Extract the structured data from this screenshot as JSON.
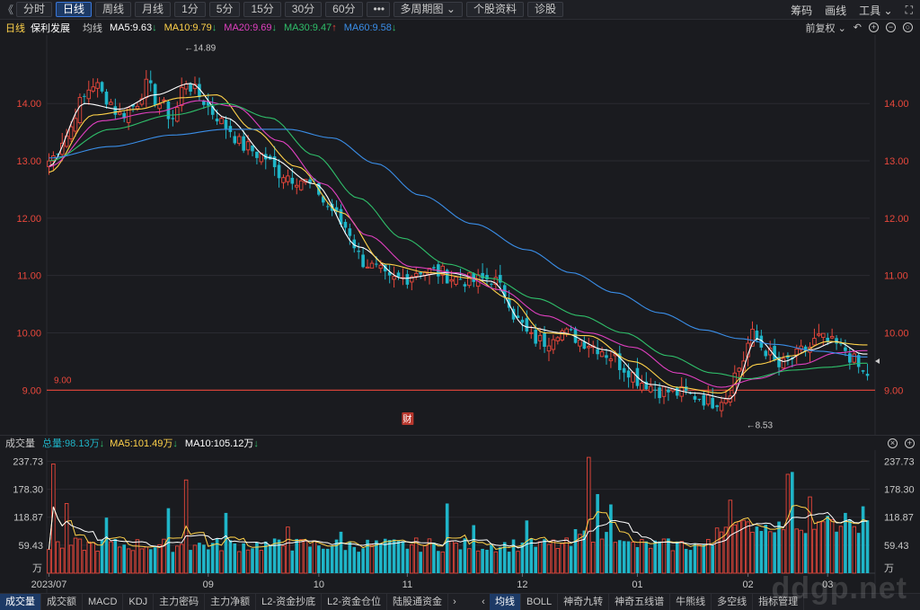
{
  "toolbar": {
    "collapse": "《",
    "tabs": [
      {
        "label": "分时",
        "active": false
      },
      {
        "label": "日线",
        "active": true
      },
      {
        "label": "周线",
        "active": false
      },
      {
        "label": "月线",
        "active": false
      },
      {
        "label": "1分",
        "active": false
      },
      {
        "label": "5分",
        "active": false
      },
      {
        "label": "15分",
        "active": false
      },
      {
        "label": "30分",
        "active": false
      },
      {
        "label": "60分",
        "active": false
      }
    ],
    "more": "•••",
    "multi_period": "多周期图",
    "stock_info": "个股资料",
    "diagnose": "诊股",
    "right_items": [
      "筹码",
      "画线",
      "工具"
    ],
    "fullscreen": "⛶"
  },
  "info_bar": {
    "period": "日线",
    "stock_name": "保利发展",
    "avg_label": "均线",
    "ma": [
      {
        "label": "MA5:9.63",
        "arrow": "down",
        "color": "#ffffff"
      },
      {
        "label": "MA10:9.79",
        "arrow": "down",
        "color": "#ffd24a"
      },
      {
        "label": "MA20:9.69",
        "arrow": "down",
        "color": "#e040c0"
      },
      {
        "label": "MA30:9.47",
        "arrow": "up",
        "color": "#2fbf6a"
      },
      {
        "label": "MA60:9.58",
        "arrow": "down",
        "color": "#3a8ee8"
      }
    ],
    "adjust": "前复权"
  },
  "vol_info": {
    "title": "成交量",
    "total": "总量:98.13万",
    "ma5": "MA5:101.49万",
    "ma10": "MA10:105.12万",
    "ma5_arrow": "down",
    "ma10_arrow": "down"
  },
  "bottom_tabs": {
    "left": [
      {
        "label": "成交量",
        "active": true
      },
      {
        "label": "成交额",
        "active": false
      },
      {
        "label": "MACD",
        "active": false
      },
      {
        "label": "KDJ",
        "active": false
      },
      {
        "label": "主力密码",
        "active": false
      },
      {
        "label": "主力净额",
        "active": false
      },
      {
        "label": "L2-资金抄底",
        "active": false
      },
      {
        "label": "L2-资金仓位",
        "active": false
      },
      {
        "label": "陆股通资金",
        "active": false
      }
    ],
    "right": [
      {
        "label": "均线",
        "active": true
      },
      {
        "label": "BOLL",
        "active": false
      },
      {
        "label": "神奇九转",
        "active": false
      },
      {
        "label": "神奇五线谱",
        "active": false
      },
      {
        "label": "牛熊线",
        "active": false
      },
      {
        "label": "多空线",
        "active": false
      },
      {
        "label": "指标管理",
        "active": false
      }
    ]
  },
  "watermark": "ddgp.net",
  "colors": {
    "up": "#e8473b",
    "down": "#1fb5c8",
    "ma5": "#ffffff",
    "ma10": "#ffd24a",
    "ma20": "#e040c0",
    "ma30": "#2fbf6a",
    "ma60": "#3a8ee8",
    "ref_line": "#e8473b"
  },
  "chart_data": {
    "type": "candlestick",
    "price_axis": {
      "min": 8.3,
      "max": 15.1,
      "ticks": [
        14.0,
        13.0,
        12.0,
        11.0,
        10.0,
        9.0
      ],
      "tick_labels": [
        "14.00",
        "13.00",
        "12.00",
        "11.00",
        "10.00",
        "9.00"
      ]
    },
    "reference_line": {
      "value": 9.0,
      "label": "9.00"
    },
    "annotations": [
      {
        "label": "←14.89",
        "value": 14.89,
        "bar_index": 31
      },
      {
        "label": "←8.53",
        "value": 8.53,
        "bar_index": 158
      },
      {
        "label": "财",
        "bar_index": 81
      }
    ],
    "date_labels": [
      {
        "label": "2023/07",
        "bar_index": 0
      },
      {
        "label": "09",
        "bar_index": 36
      },
      {
        "label": "10",
        "bar_index": 61
      },
      {
        "label": "11",
        "bar_index": 81
      },
      {
        "label": "12",
        "bar_index": 107
      },
      {
        "label": "01",
        "bar_index": 133
      },
      {
        "label": "02",
        "bar_index": 158
      },
      {
        "label": "03",
        "bar_index": 176
      }
    ],
    "anchors": [
      [
        0,
        13.0
      ],
      [
        4,
        13.45
      ],
      [
        7,
        14.0
      ],
      [
        10,
        14.35
      ],
      [
        13,
        14.1
      ],
      [
        16,
        13.8
      ],
      [
        19,
        13.95
      ],
      [
        22,
        14.3
      ],
      [
        25,
        14.0
      ],
      [
        28,
        13.75
      ],
      [
        31,
        14.4
      ],
      [
        33,
        14.2
      ],
      [
        35,
        14.05
      ],
      [
        37,
        13.85
      ],
      [
        40,
        13.6
      ],
      [
        44,
        13.25
      ],
      [
        48,
        13.1
      ],
      [
        52,
        12.8
      ],
      [
        56,
        12.7
      ],
      [
        60,
        12.55
      ],
      [
        63,
        12.2
      ],
      [
        67,
        11.85
      ],
      [
        71,
        11.25
      ],
      [
        74,
        11.1
      ],
      [
        77,
        10.9
      ],
      [
        80,
        10.95
      ],
      [
        84,
        11.1
      ],
      [
        88,
        11.05
      ],
      [
        92,
        10.95
      ],
      [
        96,
        10.9
      ],
      [
        100,
        10.95
      ],
      [
        103,
        10.7
      ],
      [
        106,
        10.2
      ],
      [
        109,
        9.9
      ],
      [
        112,
        9.85
      ],
      [
        115,
        10.05
      ],
      [
        118,
        9.95
      ],
      [
        121,
        9.85
      ],
      [
        124,
        9.75
      ],
      [
        127,
        9.6
      ],
      [
        130,
        9.4
      ],
      [
        134,
        9.15
      ],
      [
        138,
        9.0
      ],
      [
        142,
        8.95
      ],
      [
        146,
        8.9
      ],
      [
        150,
        8.8
      ],
      [
        153,
        8.9
      ],
      [
        156,
        9.4
      ],
      [
        159,
        9.95
      ],
      [
        162,
        9.7
      ],
      [
        165,
        9.4
      ],
      [
        168,
        9.55
      ],
      [
        171,
        9.7
      ],
      [
        174,
        9.9
      ],
      [
        177,
        9.8
      ],
      [
        180,
        9.7
      ],
      [
        182,
        9.5
      ],
      [
        184,
        9.28
      ]
    ],
    "ma_anchors": {
      "ma5": [
        [
          0,
          12.9
        ],
        [
          8,
          14.0
        ],
        [
          16,
          13.9
        ],
        [
          24,
          14.15
        ],
        [
          32,
          14.35
        ],
        [
          40,
          13.75
        ],
        [
          50,
          13.05
        ],
        [
          60,
          12.6
        ],
        [
          70,
          11.5
        ],
        [
          80,
          10.95
        ],
        [
          90,
          11.05
        ],
        [
          100,
          10.9
        ],
        [
          108,
          10.1
        ],
        [
          116,
          10.0
        ],
        [
          126,
          9.7
        ],
        [
          136,
          9.1
        ],
        [
          146,
          8.95
        ],
        [
          154,
          8.85
        ],
        [
          160,
          9.9
        ],
        [
          166,
          9.5
        ],
        [
          172,
          9.7
        ],
        [
          178,
          9.85
        ],
        [
          184,
          9.63
        ]
      ],
      "ma10": [
        [
          0,
          12.8
        ],
        [
          10,
          13.8
        ],
        [
          20,
          13.9
        ],
        [
          30,
          14.1
        ],
        [
          38,
          14.15
        ],
        [
          46,
          13.55
        ],
        [
          56,
          12.9
        ],
        [
          66,
          12.1
        ],
        [
          76,
          11.2
        ],
        [
          86,
          11.05
        ],
        [
          96,
          10.95
        ],
        [
          104,
          10.6
        ],
        [
          112,
          10.0
        ],
        [
          122,
          9.95
        ],
        [
          132,
          9.5
        ],
        [
          142,
          9.05
        ],
        [
          152,
          8.95
        ],
        [
          160,
          9.45
        ],
        [
          168,
          9.6
        ],
        [
          176,
          9.85
        ],
        [
          184,
          9.79
        ]
      ],
      "ma20": [
        [
          0,
          12.9
        ],
        [
          12,
          13.7
        ],
        [
          24,
          13.85
        ],
        [
          34,
          14.05
        ],
        [
          42,
          13.95
        ],
        [
          52,
          13.35
        ],
        [
          62,
          12.6
        ],
        [
          72,
          11.7
        ],
        [
          82,
          11.15
        ],
        [
          92,
          11.05
        ],
        [
          102,
          10.75
        ],
        [
          112,
          10.3
        ],
        [
          122,
          10.0
        ],
        [
          132,
          9.75
        ],
        [
          142,
          9.3
        ],
        [
          152,
          9.05
        ],
        [
          160,
          9.2
        ],
        [
          170,
          9.45
        ],
        [
          178,
          9.65
        ],
        [
          184,
          9.69
        ]
      ],
      "ma30": [
        [
          0,
          13.0
        ],
        [
          14,
          13.55
        ],
        [
          28,
          13.8
        ],
        [
          40,
          14.0
        ],
        [
          50,
          13.75
        ],
        [
          60,
          13.1
        ],
        [
          70,
          12.35
        ],
        [
          80,
          11.65
        ],
        [
          90,
          11.2
        ],
        [
          100,
          10.95
        ],
        [
          110,
          10.6
        ],
        [
          120,
          10.3
        ],
        [
          130,
          10.0
        ],
        [
          140,
          9.6
        ],
        [
          150,
          9.3
        ],
        [
          158,
          9.2
        ],
        [
          168,
          9.35
        ],
        [
          176,
          9.4
        ],
        [
          184,
          9.47
        ]
      ],
      "ma60": [
        [
          0,
          13.05
        ],
        [
          14,
          13.25
        ],
        [
          28,
          13.45
        ],
        [
          40,
          13.55
        ],
        [
          54,
          13.55
        ],
        [
          64,
          13.4
        ],
        [
          74,
          12.95
        ],
        [
          84,
          12.4
        ],
        [
          96,
          11.9
        ],
        [
          108,
          11.45
        ],
        [
          118,
          11.05
        ],
        [
          128,
          10.7
        ],
        [
          138,
          10.35
        ],
        [
          148,
          10.05
        ],
        [
          156,
          9.9
        ],
        [
          164,
          9.8
        ],
        [
          174,
          9.68
        ],
        [
          184,
          9.58
        ]
      ]
    },
    "volume_axis": {
      "min": 0,
      "max": 250,
      "ticks": [
        237.73,
        178.3,
        118.87,
        59.43
      ],
      "tick_labels": [
        "237.73",
        "178.30",
        "118.87",
        "59.43"
      ],
      "unit": "万"
    },
    "volume_spikes": [
      [
        1,
        232
      ],
      [
        4,
        148
      ],
      [
        13,
        118
      ],
      [
        27,
        138
      ],
      [
        31,
        198
      ],
      [
        40,
        128
      ],
      [
        54,
        98
      ],
      [
        66,
        88
      ],
      [
        90,
        148
      ],
      [
        96,
        102
      ],
      [
        108,
        112
      ],
      [
        122,
        246
      ],
      [
        124,
        168
      ],
      [
        127,
        146
      ],
      [
        154,
        155
      ],
      [
        167,
        210
      ],
      [
        168,
        215
      ],
      [
        172,
        162
      ],
      [
        176,
        122
      ],
      [
        180,
        128
      ],
      [
        184,
        142
      ]
    ]
  }
}
